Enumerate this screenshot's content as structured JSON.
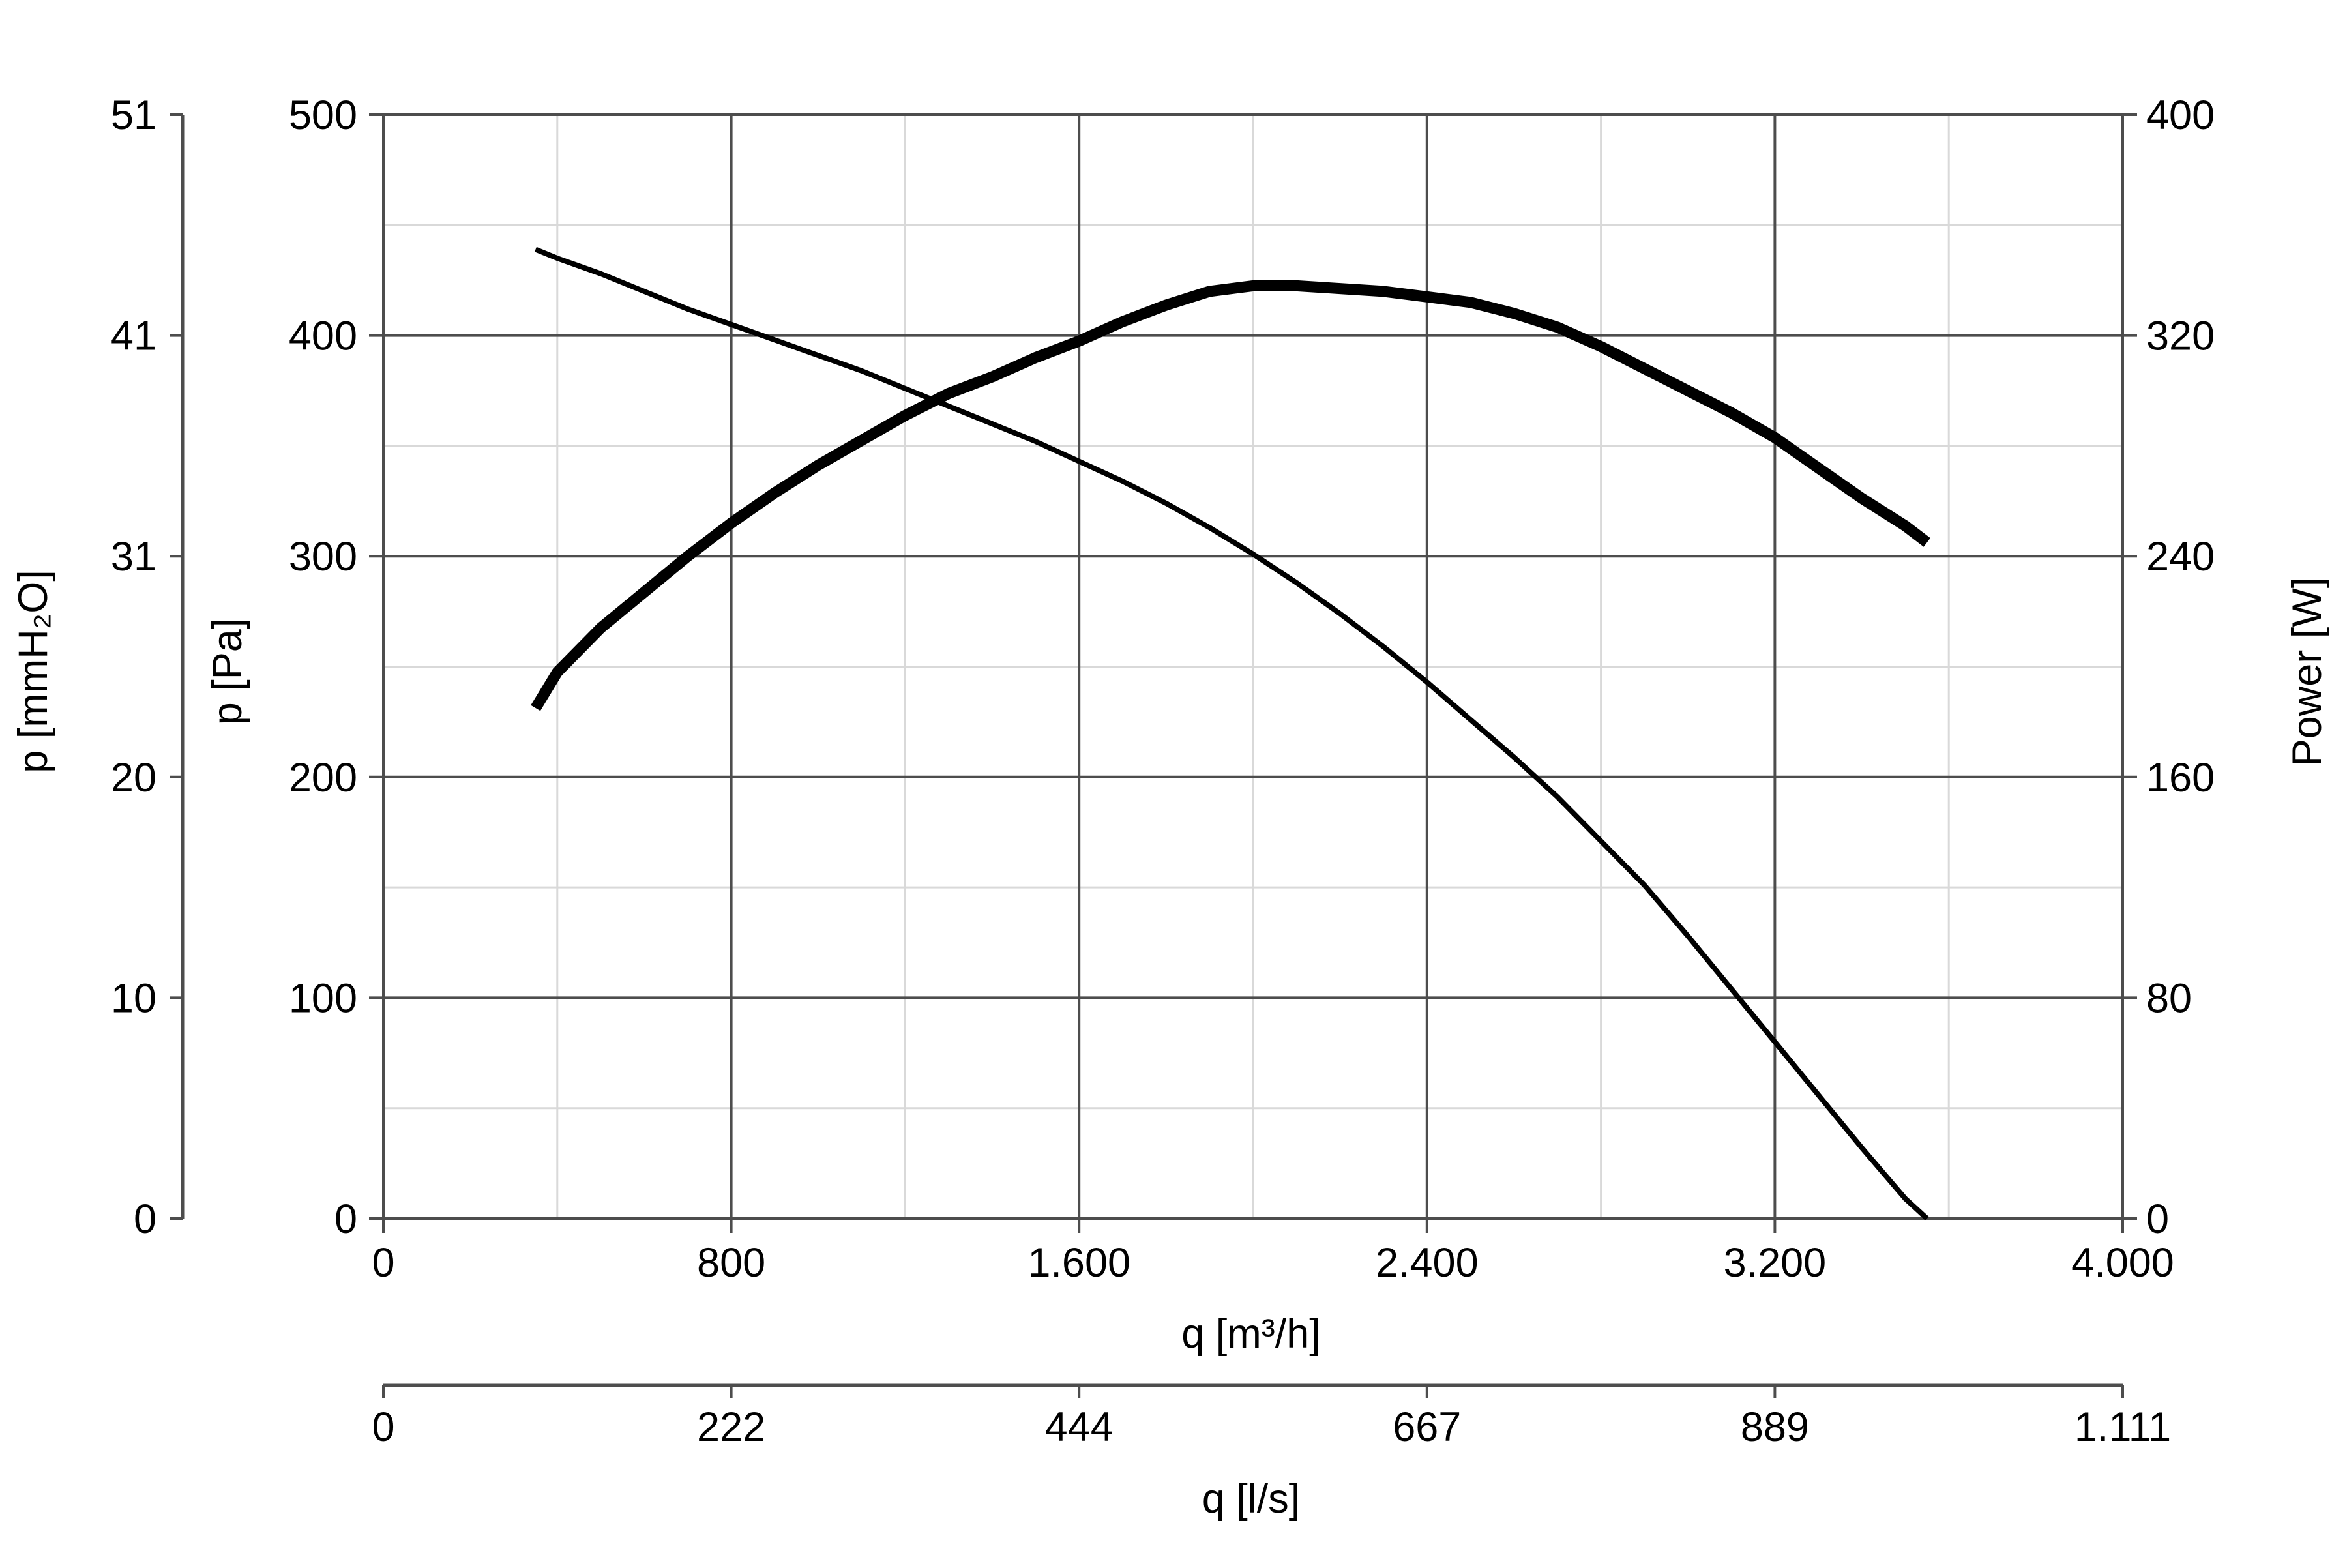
{
  "chart_data": {
    "type": "line",
    "x_axis": {
      "label": "q [m³/h]",
      "min": 0,
      "max": 4000,
      "ticks": [
        0,
        800,
        1600,
        2400,
        3200,
        4000
      ],
      "tick_labels": [
        "0",
        "800",
        "1.600",
        "2.400",
        "3.200",
        "4.000"
      ]
    },
    "x2_axis": {
      "label": "q [l/s]",
      "tick_labels": [
        "0",
        "222",
        "444",
        "667",
        "889",
        "1.111"
      ]
    },
    "y_left_axis": {
      "label": "p [Pa]",
      "min": 0,
      "max": 500,
      "ticks": [
        0,
        100,
        200,
        300,
        400,
        500
      ],
      "tick_labels": [
        "0",
        "100",
        "200",
        "300",
        "400",
        "500"
      ]
    },
    "y_left2_axis": {
      "label": "p [mmH₂O]",
      "tick_labels": [
        "0",
        "10",
        "20",
        "31",
        "41",
        "51"
      ]
    },
    "y_right_axis": {
      "label": "Power [W]",
      "min": 0,
      "max": 400,
      "ticks": [
        0,
        80,
        160,
        240,
        320,
        400
      ],
      "tick_labels": [
        "0",
        "80",
        "160",
        "240",
        "320",
        "400"
      ]
    },
    "grid": true,
    "grid_minor_x": [
      400,
      1200,
      2000,
      2800,
      3600
    ],
    "grid_minor_y": [
      50,
      150,
      250,
      350,
      450
    ],
    "series": [
      {
        "id": "pressure",
        "axis": "left",
        "x": [
          350,
          400,
          500,
          600,
          700,
          800,
          900,
          1000,
          1100,
          1200,
          1300,
          1400,
          1500,
          1600,
          1700,
          1800,
          1900,
          2000,
          2100,
          2200,
          2300,
          2400,
          2500,
          2600,
          2700,
          2800,
          2900,
          3000,
          3100,
          3200,
          3300,
          3400,
          3500,
          3550
        ],
        "y": [
          439,
          435,
          428,
          420,
          412,
          405,
          398,
          391,
          384,
          376,
          368,
          360,
          352,
          343,
          334,
          324,
          313,
          301,
          288,
          274,
          259,
          243,
          226,
          209,
          191,
          171,
          151,
          128,
          104,
          80,
          56,
          32,
          9,
          0
        ]
      },
      {
        "id": "power",
        "axis": "right",
        "x": [
          350,
          400,
          500,
          600,
          700,
          800,
          900,
          1000,
          1100,
          1200,
          1300,
          1400,
          1500,
          1600,
          1700,
          1800,
          1900,
          2000,
          2100,
          2200,
          2300,
          2400,
          2500,
          2600,
          2700,
          2800,
          2900,
          3000,
          3100,
          3200,
          3300,
          3400,
          3500,
          3550
        ],
        "y": [
          185,
          198,
          214,
          227,
          240,
          252,
          263,
          273,
          282,
          291,
          299,
          305,
          312,
          318,
          325,
          331,
          336,
          338,
          338,
          337,
          336,
          334,
          332,
          328,
          323,
          316,
          308,
          300,
          292,
          283,
          272,
          261,
          251,
          245
        ]
      }
    ]
  }
}
